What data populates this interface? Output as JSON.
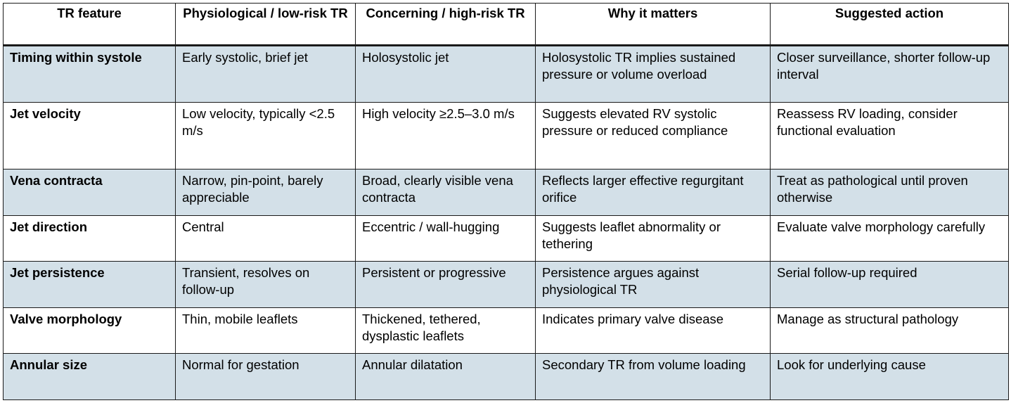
{
  "table": {
    "headers": [
      "TR feature",
      "Physiological / low-risk TR",
      "Concerning / high-risk TR",
      "Why it matters",
      "Suggested action"
    ],
    "rows": [
      [
        "Timing within systole",
        "Early systolic, brief jet",
        "Holosystolic jet",
        "Holosystolic TR implies sustained pressure or volume overload",
        "Closer surveillance, shorter follow-up interval"
      ],
      [
        "Jet velocity",
        "Low velocity, typically <2.5 m/s",
        "High velocity ≥2.5–3.0 m/s",
        "Suggests elevated RV systolic pressure or reduced compliance",
        "Reassess RV loading, consider functional evaluation"
      ],
      [
        "Vena contracta",
        "Narrow, pin-point, barely appreciable",
        "Broad, clearly visible vena contracta",
        "Reflects larger effective regurgitant orifice",
        "Treat as pathological until proven otherwise"
      ],
      [
        "Jet direction",
        "Central",
        "Eccentric / wall-hugging",
        "Suggests leaflet abnormality or tethering",
        "Evaluate valve morphology carefully"
      ],
      [
        "Jet persistence",
        "Transient, resolves on follow-up",
        "Persistent or progressive",
        "Persistence argues against physiological TR",
        "Serial follow-up required"
      ],
      [
        "Valve morphology",
        "Thin, mobile leaflets",
        "Thickened, tethered, dysplastic leaflets",
        "Indicates primary valve disease",
        "Manage as structural pathology"
      ],
      [
        "Annular size",
        "Normal for gestation",
        "Annular dilatation",
        "Secondary TR from volume loading",
        "Look for underlying cause"
      ]
    ]
  }
}
